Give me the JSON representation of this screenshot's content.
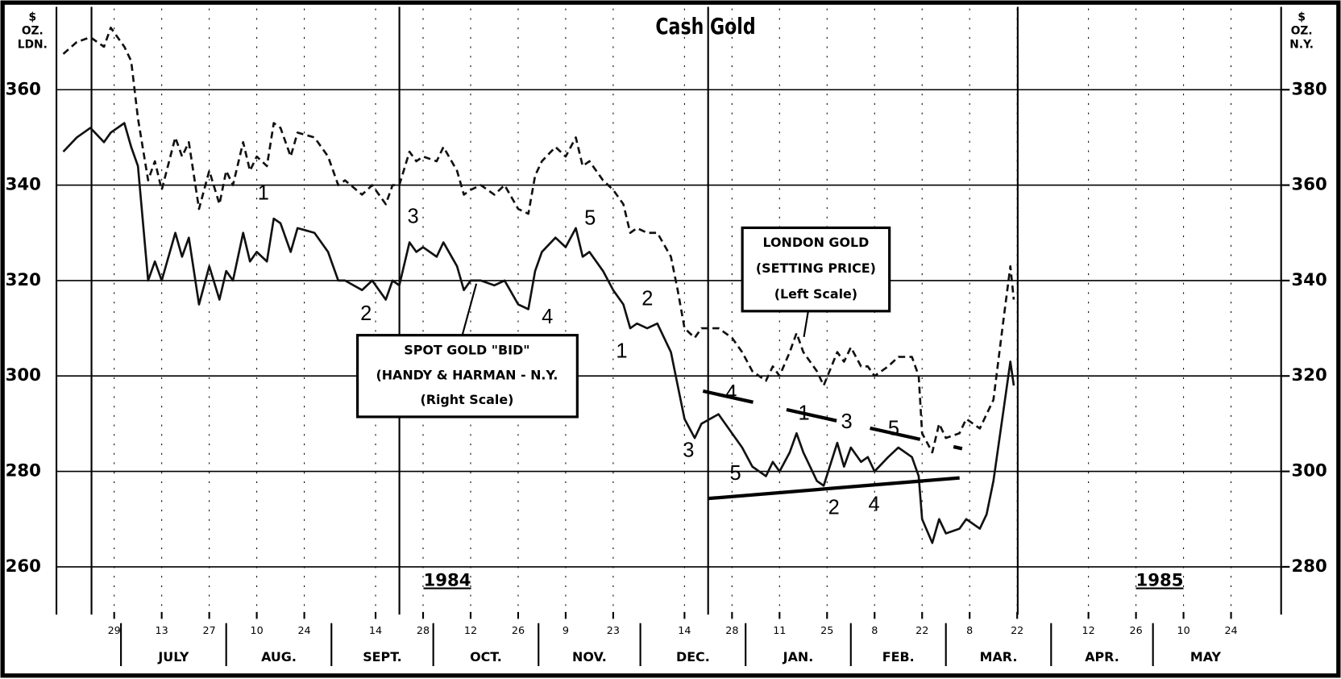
{
  "chart_data": {
    "type": "line",
    "title": "Cash Gold",
    "ylabel": [
      "$",
      "OZ.",
      "LDN."
    ],
    "y2label": [
      "$",
      "OZ.",
      "N.Y."
    ],
    "x": [
      "1984-06-14",
      "1984-06-18",
      "1984-06-22",
      "1984-06-26",
      "1984-06-28",
      "1984-07-02",
      "1984-07-04",
      "1984-07-06",
      "1984-07-09",
      "1984-07-11",
      "1984-07-13",
      "1984-07-17",
      "1984-07-19",
      "1984-07-21",
      "1984-07-24",
      "1984-07-27",
      "1984-07-30",
      "1984-08-01",
      "1984-08-03",
      "1984-08-06",
      "1984-08-08",
      "1984-08-10",
      "1984-08-13",
      "1984-08-15",
      "1984-08-17",
      "1984-08-20",
      "1984-08-22",
      "1984-08-27",
      "1984-08-31",
      "1984-09-03",
      "1984-09-05",
      "1984-09-10",
      "1984-09-13",
      "1984-09-17",
      "1984-09-19",
      "1984-09-21",
      "1984-09-24",
      "1984-09-26",
      "1984-09-28",
      "1984-10-02",
      "1984-10-04",
      "1984-10-08",
      "1984-10-10",
      "1984-10-12",
      "1984-10-15",
      "1984-10-19",
      "1984-10-22",
      "1984-10-26",
      "1984-10-29",
      "1984-10-31",
      "1984-11-02",
      "1984-11-06",
      "1984-11-09",
      "1984-11-12",
      "1984-11-14",
      "1984-11-16",
      "1984-11-20",
      "1984-11-23",
      "1984-11-26",
      "1984-11-28",
      "1984-11-30",
      "1984-12-03",
      "1984-12-06",
      "1984-12-10",
      "1984-12-12",
      "1984-12-14",
      "1984-12-17",
      "1984-12-19",
      "1984-12-24",
      "1984-12-28",
      "1984-12-31",
      "1985-01-03",
      "1985-01-07",
      "1985-01-09",
      "1985-01-11",
      "1985-01-14",
      "1985-01-16",
      "1985-01-18",
      "1985-01-22",
      "1985-01-24",
      "1985-01-28",
      "1985-01-30",
      "1985-02-01",
      "1985-02-04",
      "1985-02-06",
      "1985-02-08",
      "1985-02-12",
      "1985-02-15",
      "1985-02-19",
      "1985-02-21",
      "1985-02-22",
      "1985-02-25",
      "1985-02-27",
      "1985-03-01",
      "1985-03-05",
      "1985-03-07",
      "1985-03-11",
      "1985-03-13",
      "1985-03-15",
      "1985-03-18",
      "1985-03-20",
      "1985-03-21"
    ],
    "series": [
      {
        "name": "LONDON GOLD",
        "label_lines": [
          "(SETTING PRICE)",
          "(Left Scale)"
        ],
        "color": "#111111",
        "dashed": true,
        "axis": "y",
        "values": [
          367.5,
          370,
          371,
          369,
          373,
          369,
          366,
          354,
          341,
          345,
          339,
          350,
          346,
          349,
          335,
          343,
          336,
          343,
          340,
          349,
          343,
          346,
          344,
          353,
          352,
          346,
          351,
          350,
          346,
          340,
          341,
          338,
          340,
          336,
          340,
          340,
          347,
          345,
          346,
          345,
          348,
          343,
          338,
          339,
          340,
          338,
          340,
          335,
          334,
          342,
          345,
          348,
          346,
          350,
          344,
          345,
          341,
          339,
          336,
          330,
          331,
          330,
          330,
          325,
          318,
          310,
          308,
          310,
          310,
          308,
          305,
          301,
          299,
          302,
          300,
          305,
          309,
          305,
          301,
          298,
          305,
          303,
          306,
          302,
          302,
          300,
          302,
          304,
          304,
          300,
          288,
          284,
          290,
          287,
          288,
          291,
          289,
          292,
          295,
          312,
          323,
          316
        ]
      },
      {
        "name": "SPOT GOLD \"BID\"",
        "label_lines": [
          "(HANDY & HARMAN - N.Y.",
          "(Right Scale)"
        ],
        "color": "#111111",
        "dashed": false,
        "axis": "y2",
        "values": [
          367,
          370,
          372,
          369,
          371,
          373,
          368,
          364,
          340,
          344,
          340,
          350,
          345,
          349,
          335,
          343,
          336,
          342,
          340,
          350,
          344,
          346,
          344,
          353,
          352,
          346,
          351,
          350,
          346,
          340,
          340,
          338,
          340,
          336,
          340,
          339,
          348,
          346,
          347,
          345,
          348,
          343,
          338,
          340,
          340,
          339,
          340,
          335,
          334,
          342,
          346,
          349,
          347,
          351,
          345,
          346,
          342,
          338,
          335,
          330,
          331,
          330,
          331,
          325,
          318,
          311,
          307,
          310,
          312,
          308,
          305,
          301,
          299,
          302,
          300,
          304,
          308,
          304,
          298,
          297,
          306,
          301,
          305,
          302,
          303,
          300,
          303,
          305,
          303,
          299,
          290,
          285,
          290,
          287,
          288,
          290,
          288,
          291,
          298,
          313,
          323,
          318
        ]
      }
    ],
    "xlim": [
      "1984-06-13",
      "1985-06-07"
    ],
    "xticks": [
      {
        "value": "1984-06-29",
        "label": "29"
      },
      {
        "value": "1984-07-13",
        "label": "13"
      },
      {
        "value": "1984-07-27",
        "label": "27"
      },
      {
        "value": "1984-08-10",
        "label": "10"
      },
      {
        "value": "1984-08-24",
        "label": "24"
      },
      {
        "value": "1984-09-14",
        "label": "14"
      },
      {
        "value": "1984-09-28",
        "label": "28"
      },
      {
        "value": "1984-10-12",
        "label": "12"
      },
      {
        "value": "1984-10-26",
        "label": "26"
      },
      {
        "value": "1984-11-09",
        "label": "9"
      },
      {
        "value": "1984-11-23",
        "label": "23"
      },
      {
        "value": "1984-12-14",
        "label": "14"
      },
      {
        "value": "1984-12-28",
        "label": "28"
      },
      {
        "value": "1985-01-11",
        "label": "11"
      },
      {
        "value": "1985-01-25",
        "label": "25"
      },
      {
        "value": "1985-02-08",
        "label": "8"
      },
      {
        "value": "1985-02-22",
        "label": "22"
      },
      {
        "value": "1985-03-08",
        "label": "8"
      },
      {
        "value": "1985-03-22",
        "label": "22"
      },
      {
        "value": "1985-04-12",
        "label": "12"
      },
      {
        "value": "1985-04-26",
        "label": "26"
      },
      {
        "value": "1985-05-10",
        "label": "10"
      },
      {
        "value": "1985-05-24",
        "label": "24"
      }
    ],
    "months": [
      {
        "value": "1984-07",
        "label": "JULY"
      },
      {
        "value": "1984-08",
        "label": "AUG."
      },
      {
        "value": "1984-09",
        "label": "SEPT."
      },
      {
        "value": "1984-10",
        "label": "OCT."
      },
      {
        "value": "1984-11",
        "label": "NOV."
      },
      {
        "value": "1984-12",
        "label": "DEC."
      },
      {
        "value": "1985-01",
        "label": "JAN."
      },
      {
        "value": "1985-02",
        "label": "FEB."
      },
      {
        "value": "1985-03",
        "label": "MAR."
      },
      {
        "value": "1985-04",
        "label": "APR."
      },
      {
        "value": "1985-05",
        "label": "MAY"
      }
    ],
    "year_labels": [
      "1984",
      "1985"
    ],
    "ylim": [
      250,
      377
    ],
    "yticks": [
      260,
      280,
      300,
      320,
      340,
      360
    ],
    "y2lim": [
      270,
      397
    ],
    "y2ticks": [
      280,
      300,
      320,
      340,
      360,
      380
    ],
    "grid": true,
    "wave_labels": [
      "1",
      "3",
      "2",
      "5",
      "4",
      "2",
      "1",
      "3",
      "5",
      "4",
      "1",
      "3",
      "5",
      "2",
      "4"
    ]
  }
}
